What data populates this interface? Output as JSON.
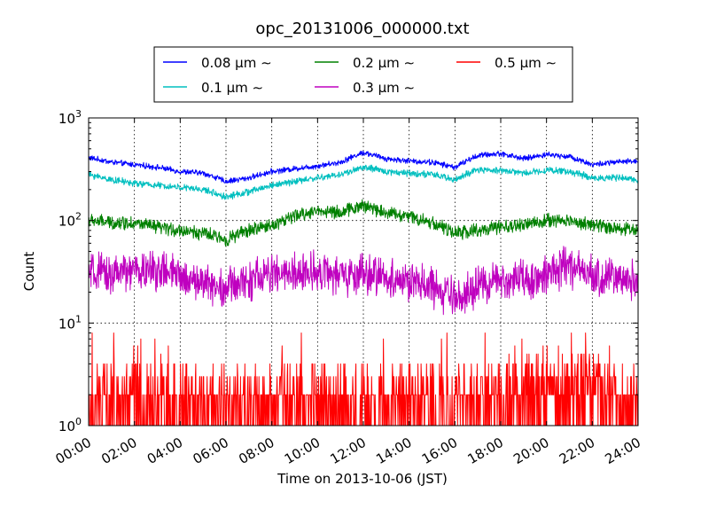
{
  "chart_data": {
    "type": "line",
    "title": "opc_20131006_000000.txt",
    "xlabel": "Time on 2013-10-06 (JST)",
    "ylabel": "Count",
    "yscale": "log",
    "ylim": [
      1,
      1000
    ],
    "xlim": [
      "00:00",
      "24:00"
    ],
    "grid": true,
    "legend_placement": "top-center, above plot, 3 columns",
    "x_ticks": [
      "00:00",
      "02:00",
      "04:00",
      "06:00",
      "08:00",
      "10:00",
      "12:00",
      "14:00",
      "16:00",
      "18:00",
      "20:00",
      "22:00",
      "24:00"
    ],
    "y_ticks": [
      {
        "value": 1,
        "base": "10",
        "exp": "0"
      },
      {
        "value": 10,
        "base": "10",
        "exp": "1"
      },
      {
        "value": 100,
        "base": "10",
        "exp": "2"
      },
      {
        "value": 1000,
        "base": "10",
        "exp": "3"
      }
    ],
    "x_hours": [
      0,
      1,
      2,
      3,
      4,
      5,
      6,
      7,
      8,
      9,
      10,
      11,
      12,
      13,
      14,
      15,
      16,
      17,
      18,
      19,
      20,
      21,
      22,
      23,
      24
    ],
    "series": [
      {
        "name": "0.08 μm ∼",
        "color": "#0000ff",
        "noise": 0.05,
        "values": [
          410,
          370,
          350,
          330,
          300,
          290,
          240,
          260,
          300,
          320,
          340,
          370,
          460,
          400,
          380,
          370,
          330,
          430,
          450,
          400,
          440,
          420,
          350,
          370,
          380
        ]
      },
      {
        "name": "0.1 μm ∼",
        "color": "#00bfbf",
        "noise": 0.06,
        "values": [
          280,
          250,
          230,
          220,
          210,
          200,
          170,
          190,
          220,
          240,
          260,
          280,
          330,
          300,
          290,
          280,
          250,
          310,
          310,
          290,
          310,
          300,
          260,
          260,
          250
        ]
      },
      {
        "name": "0.2 μm ∼",
        "color": "#008000",
        "noise": 0.12,
        "values": [
          100,
          95,
          95,
          85,
          80,
          75,
          65,
          80,
          90,
          110,
          125,
          120,
          140,
          120,
          110,
          95,
          75,
          80,
          85,
          90,
          100,
          100,
          90,
          85,
          80
        ]
      },
      {
        "name": "0.3 μm ∼",
        "color": "#bf00bf",
        "noise": 0.35,
        "values": [
          30,
          30,
          32,
          33,
          28,
          25,
          22,
          26,
          30,
          30,
          33,
          28,
          30,
          28,
          25,
          22,
          17,
          22,
          26,
          27,
          30,
          35,
          28,
          28,
          25
        ]
      },
      {
        "name": "0.5 μm ∼",
        "color": "#ff0000",
        "noise": 1.0,
        "values": [
          2,
          2,
          2,
          2,
          2,
          2,
          2,
          2,
          2.5,
          2.5,
          2,
          2,
          2,
          2,
          2,
          2,
          2,
          2,
          2.5,
          2.5,
          3,
          3.5,
          3,
          2.5,
          2
        ]
      }
    ]
  }
}
